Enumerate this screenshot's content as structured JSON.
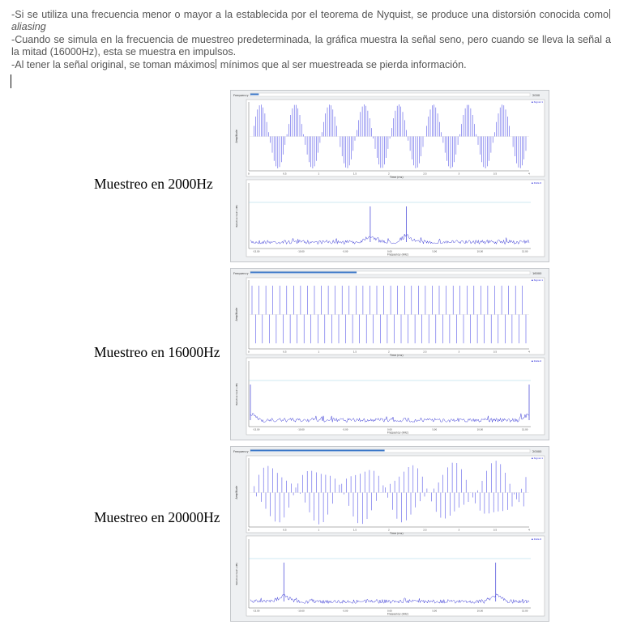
{
  "text": {
    "line1_a": "-Si se utiliza una frecuencia menor o mayor a la establecida por el teorema de Nyquist, se produce una distorsión conocida como",
    "line1_em": "aliasing",
    "line2": "-Cuando se simula en la frecuencia de muestreo predeterminada, la gráfica muestra la señal seno, pero cuando se lleva la señal a la mitad (16000Hz), esta se muestra en impulsos.",
    "line3_a": "-Al tener la señal original, se toman máximos",
    "line3_b": " mínimos que al ser muestreada se pierda información."
  },
  "figures": [
    {
      "label": "Muestreo en 2000Hz",
      "slider_label": "Frequency",
      "slider_value": "2000",
      "slider_fill": 0.03,
      "time_legend": "Signal 1",
      "time_ylabel": "Amplitude",
      "time_xlabel": "Time (ms)",
      "time_ticks": [
        "0",
        "0.5",
        "1",
        "1.5",
        "2",
        "2.5",
        "3",
        "3.5",
        "4"
      ],
      "fft_legend": "Data 6",
      "fft_ylabel": "Relative Gain (dB)",
      "fft_xlabel": "Frequency (kHz)",
      "fft_ticks": [
        "-15.00",
        "-10.00",
        "-5.00",
        "0.00",
        "5.00",
        "10.00",
        "15.00"
      ],
      "waveform": "sine",
      "peaks": [
        0.43,
        0.56
      ]
    },
    {
      "label": "Muestreo en 16000Hz",
      "slider_label": "Frequency",
      "slider_value": "16000",
      "slider_fill": 0.38,
      "time_legend": "Signal 1",
      "time_ylabel": "Amplitude",
      "time_xlabel": "Time (ms)",
      "time_ticks": [
        "0",
        "0.5",
        "1",
        "1.5",
        "2",
        "2.5",
        "3",
        "3.5",
        "4"
      ],
      "fft_legend": "Data 6",
      "fft_ylabel": "Relative Gain (dB)",
      "fft_xlabel": "Frequency (kHz)",
      "fft_ticks": [
        "-15.00",
        "-10.00",
        "-5.00",
        "0.00",
        "5.00",
        "10.00",
        "15.00"
      ],
      "waveform": "alternating",
      "peaks": [
        0.0,
        1.0
      ]
    },
    {
      "label": "Muestreo en 20000Hz",
      "slider_label": "Frequency",
      "slider_value": "20000",
      "slider_fill": 0.48,
      "time_legend": "Signal 1",
      "time_ylabel": "Amplitude",
      "time_xlabel": "Time (ms)",
      "time_ticks": [
        "0",
        "0.5",
        "1",
        "1.5",
        "2",
        "2.5",
        "3",
        "3.5",
        "4"
      ],
      "fft_legend": "Data 6",
      "fft_ylabel": "Relative Gain (dB)",
      "fft_xlabel": "Frequency (kHz)",
      "fft_ticks": [
        "-15.00",
        "-10.00",
        "-5.00",
        "0.00",
        "5.00",
        "10.00",
        "15.00"
      ],
      "waveform": "aliased",
      "peaks": [
        0.12,
        0.88
      ]
    }
  ]
}
